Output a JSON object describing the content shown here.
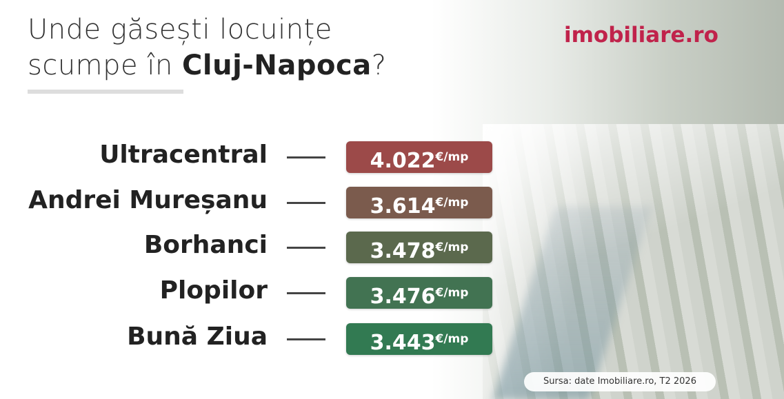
{
  "header": {
    "title_line1": "Unde găsești locuințe",
    "title_line2": "scumpe în ",
    "title_highlight": "Cluj-Napoca",
    "title_end": "?",
    "logo": "imobiliare.ro"
  },
  "items": [
    {
      "name": "Ultracentral",
      "price": "4.022",
      "unit": "€/mp",
      "color": "#9c4a49"
    },
    {
      "name": "Andrei Mureșanu",
      "price": "3.614",
      "unit": "€/mp",
      "color": "#7b5b4d"
    },
    {
      "name": "Borhanci",
      "price": "3.478",
      "unit": "€/mp",
      "color": "#5b694d"
    },
    {
      "name": "Plopilor",
      "price": "3.476",
      "unit": "€/mp",
      "color": "#427352"
    },
    {
      "name": "Bună Ziua",
      "price": "3.443",
      "unit": "€/mp",
      "color": "#327a52"
    }
  ],
  "footer": {
    "source": "Sursa: date Imobiliare.ro, T2 2026"
  }
}
